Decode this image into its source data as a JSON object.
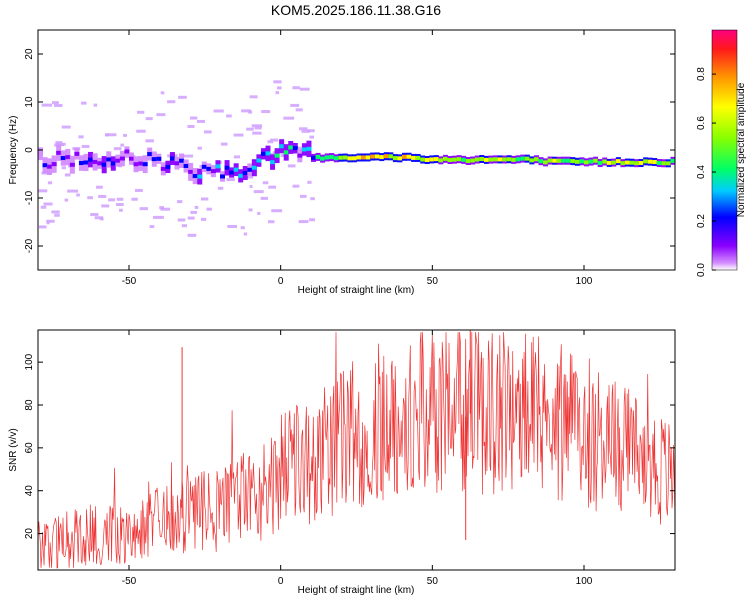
{
  "title": "KOM5.2025.186.11.38.G16",
  "chart_data": [
    {
      "type": "heatmap",
      "xlabel": "Height of straight line (km)",
      "ylabel": "Frequency (Hz)",
      "xlim": [
        -80,
        130
      ],
      "ylim": [
        -25,
        25
      ],
      "xticks": [
        -50,
        0,
        50,
        100
      ],
      "yticks": [
        20,
        10,
        0,
        -10,
        -20
      ],
      "colorbar": {
        "label": "Normalized spectral amplitude",
        "range": [
          0,
          0.98
        ],
        "ticks": [
          0.0,
          0.2,
          0.4,
          0.6,
          0.8
        ],
        "colormap": "rainbow"
      },
      "ridge": {
        "x": [
          -80,
          -70,
          -60,
          -50,
          -40,
          -30,
          -20,
          -10,
          -5,
          0,
          5,
          10,
          20,
          30,
          40,
          50,
          60,
          70,
          80,
          90,
          100,
          110,
          120,
          130
        ],
        "frequency": [
          -2,
          -2,
          -2.5,
          -1.5,
          -2.5,
          -4,
          -4.5,
          -3.5,
          -1.5,
          0,
          0,
          -1.5,
          -1.5,
          -1.5,
          -1.5,
          -2,
          -2,
          -2,
          -2,
          -2.5,
          -2.5,
          -2.5,
          -2.5,
          -2.5
        ],
        "amplitude": [
          0.15,
          0.2,
          0.25,
          0.2,
          0.2,
          0.25,
          0.3,
          0.35,
          0.4,
          0.45,
          0.3,
          0.35,
          0.7,
          0.8,
          0.75,
          0.7,
          0.6,
          0.65,
          0.6,
          0.6,
          0.55,
          0.65,
          0.7,
          0.5
        ]
      }
    },
    {
      "type": "line",
      "xlabel": "Height of straight line (km)",
      "ylabel": "SNR (v/v)",
      "xlim": [
        -80,
        130
      ],
      "ylim": [
        3,
        115
      ],
      "xticks": [
        -50,
        0,
        50,
        100
      ],
      "yticks": [
        20,
        40,
        60,
        80,
        100
      ],
      "color": "#ee3333",
      "series": [
        {
          "x": [
            -80,
            -70,
            -60,
            -50,
            -40,
            -33,
            -30,
            -20,
            -10,
            -5,
            0,
            5,
            10,
            20,
            30,
            40,
            50,
            60,
            62,
            63,
            70,
            80,
            90,
            100,
            110,
            120,
            130
          ],
          "values": [
            15,
            17,
            20,
            22,
            25,
            27,
            28,
            32,
            38,
            42,
            48,
            52,
            55,
            63,
            70,
            74,
            77,
            79,
            70,
            82,
            78,
            76,
            72,
            68,
            62,
            55,
            45
          ]
        }
      ],
      "spikes": [
        {
          "x": -32.5,
          "y": 107
        },
        {
          "x": 62.5,
          "y": 115
        },
        {
          "x": 61,
          "y": 17
        }
      ]
    }
  ]
}
